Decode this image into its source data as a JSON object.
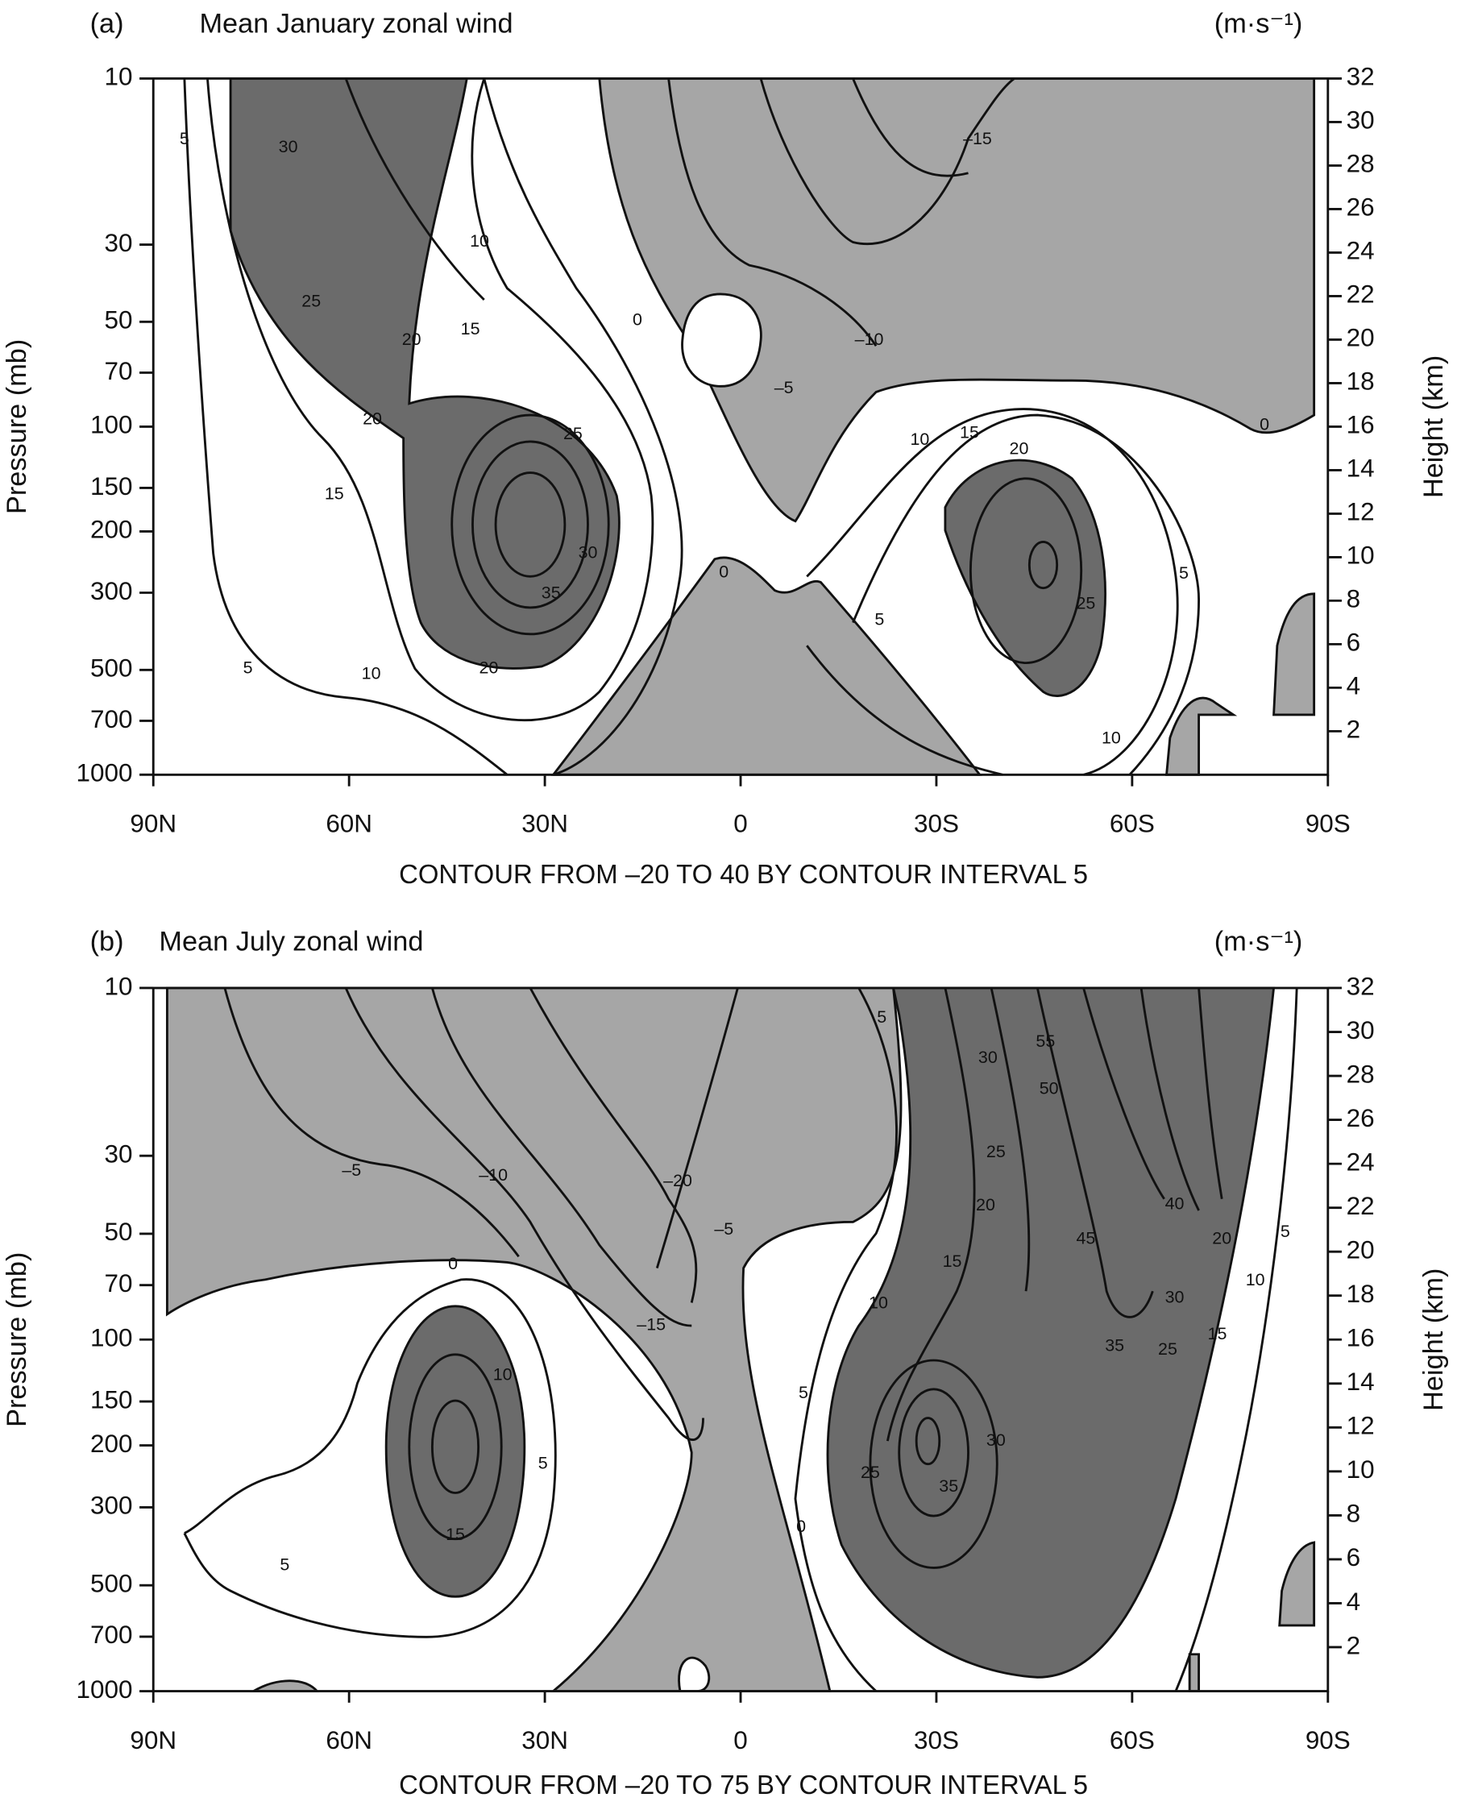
{
  "chart_data": [
    {
      "type": "contour",
      "panel_label": "(a)",
      "title": "Mean January zonal wind",
      "units": "(m·s⁻¹)",
      "ylabel": "Pressure (mb)",
      "y2label": "Height (km)",
      "xlim": [
        90,
        -90
      ],
      "xticks": [
        {
          "value": 90,
          "label": "90N"
        },
        {
          "value": 60,
          "label": "60N"
        },
        {
          "value": 30,
          "label": "30N"
        },
        0,
        {
          "value": -30,
          "label": "30S"
        },
        {
          "value": -60,
          "label": "60S"
        },
        {
          "value": -90,
          "label": "90S"
        }
      ],
      "ylim": [
        1000,
        10
      ],
      "ylog": true,
      "yticks": [
        10,
        30,
        50,
        70,
        100,
        150,
        200,
        300,
        500,
        700,
        1000
      ],
      "y2lim": [
        0,
        32
      ],
      "y2ticks": [
        2,
        4,
        6,
        8,
        10,
        12,
        14,
        16,
        18,
        20,
        22,
        24,
        26,
        28,
        30,
        32
      ],
      "footnote": "CONTOUR FROM –20 TO 40 BY CONTOUR INTERVAL 5",
      "contour_labels": [
        5,
        30,
        {
          "value": -15,
          "label": "–15"
        },
        10,
        25,
        0,
        20,
        15,
        {
          "value": -10,
          "label": "–10"
        },
        {
          "value": -5,
          "label": "–5"
        },
        20,
        25,
        10,
        15,
        20,
        0,
        15,
        30,
        0,
        5,
        35,
        5,
        25,
        5,
        10,
        20,
        10
      ]
    },
    {
      "type": "contour",
      "panel_label": "(b)",
      "title": "Mean July zonal wind",
      "units": "(m·s⁻¹)",
      "ylabel": "Pressure (mb)",
      "y2label": "Height (km)",
      "xlim": [
        90,
        -90
      ],
      "xticks": [
        {
          "value": 90,
          "label": "90N"
        },
        {
          "value": 60,
          "label": "60N"
        },
        {
          "value": 30,
          "label": "30N"
        },
        0,
        {
          "value": -30,
          "label": "30S"
        },
        {
          "value": -60,
          "label": "60S"
        },
        {
          "value": -90,
          "label": "90S"
        }
      ],
      "ylim": [
        1000,
        10
      ],
      "ylog": true,
      "yticks": [
        10,
        30,
        50,
        70,
        100,
        150,
        200,
        300,
        500,
        700,
        1000
      ],
      "y2lim": [
        0,
        32
      ],
      "y2ticks": [
        2,
        4,
        6,
        8,
        10,
        12,
        14,
        16,
        18,
        20,
        22,
        24,
        26,
        28,
        30,
        32
      ],
      "footnote": "CONTOUR FROM –20 TO 75 BY CONTOUR INTERVAL 5",
      "contour_labels": [
        5,
        30,
        55,
        50,
        25,
        {
          "value": -5,
          "label": "–5"
        },
        {
          "value": -10,
          "label": "–10"
        },
        {
          "value": -20,
          "label": "–20"
        },
        20,
        40,
        {
          "value": -5,
          "label": "–5"
        },
        45,
        20,
        5,
        15,
        0,
        10,
        30,
        10,
        {
          "value": -15,
          "label": "–15"
        },
        35,
        25,
        15,
        10,
        5,
        30,
        5,
        25,
        35,
        0,
        15,
        5
      ]
    }
  ]
}
